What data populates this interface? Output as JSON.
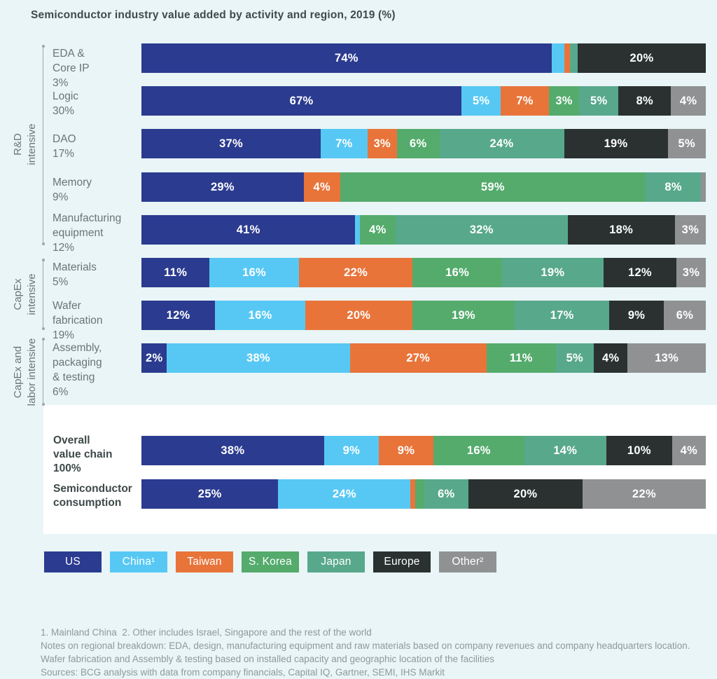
{
  "title": "Semiconductor industry value added by activity and region, 2019 (%)",
  "colors": {
    "background": "#e9f5f6",
    "panel": "#ffffff",
    "us": "#2b3b8f",
    "china": "#57c8f4",
    "taiwan": "#e8743a",
    "s_korea": "#54ab6c",
    "japan": "#58a88c",
    "europe": "#2a3130",
    "other": "#8f9192"
  },
  "legend": [
    {
      "key": "us",
      "label": "US",
      "color": "#2b3b8f"
    },
    {
      "key": "china",
      "label": "China¹",
      "color": "#57c8f4"
    },
    {
      "key": "taiwan",
      "label": "Taiwan",
      "color": "#e8743a"
    },
    {
      "key": "s-korea",
      "label": "S. Korea",
      "color": "#54ab6c"
    },
    {
      "key": "japan",
      "label": "Japan",
      "color": "#58a88c"
    },
    {
      "key": "europe",
      "label": "Europe",
      "color": "#2a3130"
    },
    {
      "key": "other",
      "label": "Other²",
      "color": "#8f9192"
    }
  ],
  "chart_data": {
    "type": "bar",
    "stacked": true,
    "orientation": "horizontal",
    "unit": "%",
    "title": "Semiconductor industry value added by activity and region, 2019 (%)",
    "legend_position": "bottom",
    "series_names": [
      "US",
      "China",
      "Taiwan",
      "S. Korea",
      "Japan",
      "Europe",
      "Other"
    ],
    "groups": [
      {
        "label": "R&D intensive",
        "label_lines": [
          "R&D",
          "intensive"
        ],
        "rows": [
          "EDA & Core IP",
          "Logic",
          "DAO",
          "Memory",
          "Manufacturing equipment"
        ]
      },
      {
        "label": "CapEx intensive",
        "label_lines": [
          "CapEx",
          "intensive"
        ],
        "rows": [
          "Materials",
          "Wafer fabrication"
        ]
      },
      {
        "label": "CapEx and labor intensive",
        "label_lines": [
          "CapEx and",
          "labor intensive"
        ],
        "rows": [
          "Assembly, packaging & testing"
        ]
      }
    ],
    "rows": [
      {
        "activity": "EDA & Core IP",
        "activity_share": "3%",
        "label_lines": [
          "EDA &",
          "Core IP",
          "3%"
        ],
        "values": [
          74,
          2.5,
          1,
          0,
          1.5,
          20,
          0
        ],
        "segment_labels": [
          "74%",
          "",
          "",
          "",
          "",
          "20%",
          ""
        ]
      },
      {
        "activity": "Logic",
        "activity_share": "30%",
        "label_lines": [
          "Logic",
          "30%"
        ],
        "values": [
          67,
          5,
          7,
          3,
          5,
          8,
          4
        ],
        "segment_labels": [
          "67%",
          "5%",
          "7%",
          "3%",
          "5%",
          "8%",
          "4%"
        ]
      },
      {
        "activity": "DAO",
        "activity_share": "17%",
        "label_lines": [
          "DAO",
          "17%"
        ],
        "values": [
          37,
          7,
          3,
          6,
          24,
          19,
          5
        ],
        "segment_labels": [
          "37%",
          "7%",
          "3%",
          "6%",
          "24%",
          "19%",
          "5%"
        ]
      },
      {
        "activity": "Memory",
        "activity_share": "9%",
        "label_lines": [
          "Memory",
          "9%"
        ],
        "values": [
          29,
          0,
          4,
          59,
          8,
          0,
          1
        ],
        "segment_labels": [
          "29%",
          "",
          "4%",
          "59%",
          "8%",
          "",
          ""
        ]
      },
      {
        "activity": "Manufacturing equipment",
        "activity_share": "12%",
        "label_lines": [
          "Manufacturing",
          "equipment",
          "12%"
        ],
        "values": [
          41,
          1,
          0,
          4,
          32,
          18,
          3
        ],
        "segment_labels": [
          "41%",
          "",
          "",
          "4%",
          "32%",
          "18%",
          "3%"
        ]
      },
      {
        "activity": "Materials",
        "activity_share": "5%",
        "label_lines": [
          "Materials",
          "5%"
        ],
        "values": [
          11,
          16,
          22,
          16,
          19,
          12,
          3
        ],
        "segment_labels": [
          "11%",
          "16%",
          "22%",
          "16%",
          "19%",
          "12%",
          "3%"
        ]
      },
      {
        "activity": "Wafer fabrication",
        "activity_share": "19%",
        "label_lines": [
          "Wafer",
          "fabrication",
          "19%"
        ],
        "values": [
          12,
          16,
          20,
          19,
          17,
          9,
          6
        ],
        "segment_labels": [
          "12%",
          "16%",
          "20%",
          "19%",
          "17%",
          "9%",
          "6%"
        ]
      },
      {
        "activity": "Assembly, packaging & testing",
        "activity_share": "6%",
        "label_lines": [
          "Assembly,",
          "packaging",
          "& testing",
          "6%"
        ],
        "values": [
          2,
          38,
          27,
          11,
          5,
          4,
          13
        ],
        "segment_labels": [
          "2%",
          "38%",
          "27%",
          "11%",
          "5%",
          "4%",
          "13%"
        ]
      },
      {
        "activity": "Overall value chain",
        "activity_share": "100%",
        "label_lines": [
          "Overall",
          "value chain",
          "100%"
        ],
        "summary": true,
        "values": [
          38,
          9,
          9,
          16,
          14,
          10,
          4
        ],
        "segment_labels": [
          "38%",
          "9%",
          "9%",
          "16%",
          "14%",
          "10%",
          "4%"
        ]
      },
      {
        "activity": "Semiconductor consumption",
        "activity_share": "",
        "label_lines": [
          "Semiconductor",
          "consumption"
        ],
        "summary": true,
        "values": [
          25,
          24,
          1,
          2,
          6,
          20,
          22
        ],
        "segment_labels": [
          "25%",
          "24%",
          "",
          "",
          "6%",
          "20%",
          "22%"
        ]
      }
    ]
  },
  "footnotes": [
    "1. Mainland China  2. Other includes Israel, Singapore and the rest of the world",
    "Notes on regional breakdown: EDA, design, manufacturing equipment and raw materials based on company revenues and company headquarters location.",
    "Wafer fabrication and Assembly & testing based on installed capacity and geographic location of the facilities",
    "Sources: BCG analysis with data from company financials, Capital IQ, Gartner, SEMI, IHS Markit"
  ]
}
